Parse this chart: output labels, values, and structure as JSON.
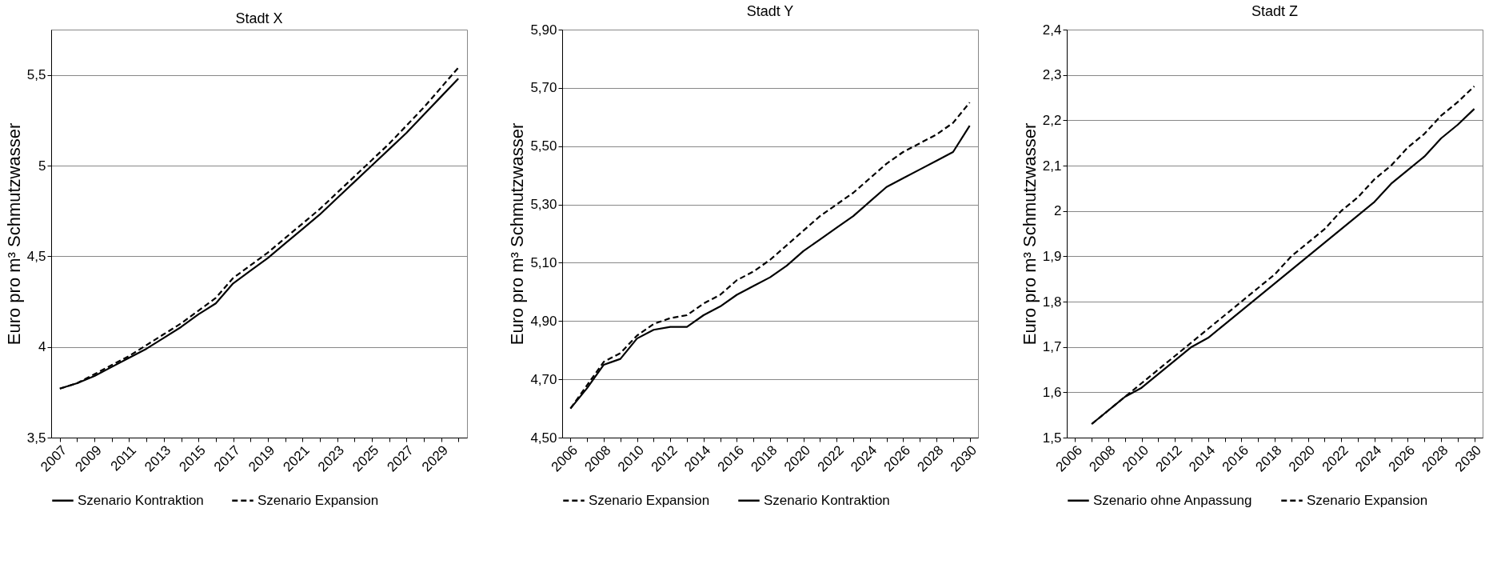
{
  "chart_data": [
    {
      "type": "line",
      "title": "Stadt X",
      "ylabel": "Euro pro m³ Schmutzwasser",
      "categories": [
        "2007",
        null,
        "2009",
        null,
        "2011",
        null,
        "2013",
        null,
        "2015",
        null,
        "2017",
        null,
        "2019",
        null,
        "2021",
        null,
        "2023",
        null,
        "2025",
        null,
        "2027",
        null,
        "2029",
        null
      ],
      "series": [
        {
          "name": "Szenario Kontraktion",
          "color": "#000000",
          "line_style": "solid",
          "values": [
            3.77,
            3.8,
            3.84,
            3.89,
            3.94,
            3.99,
            4.05,
            4.11,
            4.18,
            4.24,
            4.35,
            4.42,
            4.49,
            4.57,
            4.65,
            4.73,
            4.82,
            4.91,
            5.0,
            5.09,
            5.18,
            5.28,
            5.38,
            5.48
          ]
        },
        {
          "name": "Szenario Expansion",
          "color": "#000000",
          "line_style": "dashed",
          "values": [
            3.77,
            3.8,
            3.85,
            3.9,
            3.95,
            4.01,
            4.07,
            4.13,
            4.2,
            4.27,
            4.38,
            4.45,
            4.52,
            4.6,
            4.68,
            4.76,
            4.85,
            4.94,
            5.03,
            5.12,
            5.22,
            5.32,
            5.43,
            5.54
          ]
        }
      ],
      "ylim": [
        3.5,
        5.75
      ],
      "yticks": [
        {
          "value": 3.5,
          "label": "3,5"
        },
        4,
        {
          "value": 4.5,
          "label": "4,5"
        },
        5,
        {
          "value": 5.5,
          "label": "5,5"
        }
      ],
      "grid": "y",
      "legend": "bottom",
      "marker": "none"
    },
    {
      "type": "line",
      "title": "Stadt Y",
      "ylabel": "Euro pro m³ Schmutzwasser",
      "categories": [
        "2006",
        null,
        "2008",
        null,
        "2010",
        null,
        "2012",
        null,
        "2014",
        null,
        "2016",
        null,
        "2018",
        null,
        "2020",
        null,
        "2022",
        null,
        "2024",
        null,
        "2026",
        null,
        "2028",
        null,
        "2030"
      ],
      "series": [
        {
          "name": "Szenario Expansion",
          "color": "#000000",
          "line_style": "dashed",
          "values": [
            4.6,
            4.68,
            4.76,
            4.79,
            4.85,
            4.89,
            4.91,
            4.92,
            4.96,
            4.99,
            5.04,
            5.07,
            5.11,
            5.16,
            5.21,
            5.26,
            5.3,
            5.34,
            5.39,
            5.44,
            5.48,
            5.51,
            5.54,
            5.58,
            5.65
          ]
        },
        {
          "name": "Szenario Kontraktion",
          "color": "#000000",
          "line_style": "solid",
          "values": [
            4.6,
            4.67,
            4.75,
            4.77,
            4.84,
            4.87,
            4.88,
            4.88,
            4.92,
            4.95,
            4.99,
            5.02,
            5.05,
            5.09,
            5.14,
            5.18,
            5.22,
            5.26,
            5.31,
            5.36,
            5.39,
            5.42,
            5.45,
            5.48,
            5.57
          ]
        }
      ],
      "ylim": [
        4.5,
        5.9
      ],
      "yticks": [
        {
          "value": 4.5,
          "label": "4,50"
        },
        {
          "value": 4.7,
          "label": "4,70"
        },
        {
          "value": 4.9,
          "label": "4,90"
        },
        {
          "value": 5.1,
          "label": "5,10"
        },
        {
          "value": 5.3,
          "label": "5,30"
        },
        {
          "value": 5.5,
          "label": "5,50"
        },
        {
          "value": 5.7,
          "label": "5,70"
        },
        {
          "value": 5.9,
          "label": "5,90"
        }
      ],
      "grid": "y",
      "legend": "bottom",
      "marker": "none"
    },
    {
      "type": "line",
      "title": "Stadt  Z",
      "ylabel": "Euro pro m³ Schmutzwasser",
      "categories": [
        "2006",
        null,
        "2008",
        null,
        "2010",
        null,
        "2012",
        null,
        "2014",
        null,
        "2016",
        null,
        "2018",
        null,
        "2020",
        null,
        "2022",
        null,
        "2024",
        null,
        "2026",
        null,
        "2028",
        null,
        "2030"
      ],
      "series": [
        {
          "name": "Szenario ohne Anpassung",
          "color": "#000000",
          "line_style": "solid",
          "values": [
            null,
            1.53,
            1.56,
            1.59,
            1.61,
            1.64,
            1.67,
            1.7,
            1.72,
            1.75,
            1.78,
            1.81,
            1.84,
            1.87,
            1.9,
            1.93,
            1.96,
            1.99,
            2.02,
            2.06,
            2.09,
            2.12,
            2.16,
            2.19,
            2.225
          ]
        },
        {
          "name": "Szenario Expansion",
          "color": "#000000",
          "line_style": "dashed",
          "values": [
            null,
            1.53,
            1.56,
            1.59,
            1.62,
            1.65,
            1.68,
            1.71,
            1.74,
            1.77,
            1.8,
            1.83,
            1.86,
            1.9,
            1.93,
            1.96,
            2.0,
            2.03,
            2.07,
            2.1,
            2.14,
            2.17,
            2.21,
            2.24,
            2.275
          ]
        }
      ],
      "ylim": [
        1.5,
        2.4
      ],
      "yticks": [
        {
          "value": 1.5,
          "label": "1,5"
        },
        {
          "value": 1.6,
          "label": "1,6"
        },
        {
          "value": 1.7,
          "label": "1,7"
        },
        {
          "value": 1.8,
          "label": "1,8"
        },
        {
          "value": 1.9,
          "label": "1,9"
        },
        2,
        {
          "value": 2.1,
          "label": "2,1"
        },
        {
          "value": 2.2,
          "label": "2,2"
        },
        {
          "value": 2.3,
          "label": "2,3"
        },
        {
          "value": 2.4,
          "label": "2,4"
        }
      ],
      "grid": "y",
      "legend": "bottom",
      "marker": "none"
    }
  ]
}
